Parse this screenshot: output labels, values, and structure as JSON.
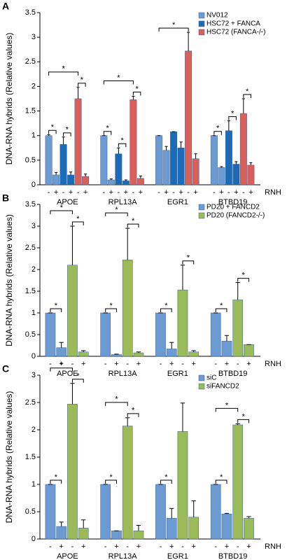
{
  "chart_data": [
    {
      "type": "bar",
      "panel_label": "A",
      "ylabel": "DNA-RNA hybrids (Relative values)",
      "categories": [
        "APOE",
        "RPL13A",
        "EGR1",
        "BTBD19"
      ],
      "treatments": [
        "-",
        "+"
      ],
      "treatment_label": "RNH",
      "ylim": [
        0,
        3.5
      ],
      "yticks": [
        0,
        0.5,
        1,
        1.5,
        2,
        2.5,
        3,
        3.5
      ],
      "legend": "upper right",
      "series": [
        {
          "name": "NV012",
          "color": "#6b9bd2",
          "values": [
            [
              1.0,
              0.2
            ],
            [
              1.0,
              0.1
            ],
            [
              1.0,
              0.7
            ],
            [
              1.0,
              0.35
            ]
          ],
          "errors": [
            [
              0.02,
              0.05
            ],
            [
              0,
              0.02
            ],
            [
              0,
              0.08
            ],
            [
              0,
              0.02
            ]
          ]
        },
        {
          "name": "HSC72 + FANCA",
          "color": "#1a6cb8",
          "values": [
            [
              0.82,
              0.2
            ],
            [
              0.63,
              0.08
            ],
            [
              1.08,
              0.75
            ],
            [
              1.1,
              0.42
            ]
          ],
          "errors": [
            [
              0.15,
              0.06
            ],
            [
              0.12,
              0.02
            ],
            [
              0,
              0.12
            ],
            [
              0.2,
              0.05
            ]
          ]
        },
        {
          "name": "HSC72 (FANCA-/-)",
          "color": "#d95f5b",
          "values": [
            [
              1.75,
              0.17
            ],
            [
              1.73,
              0.13
            ],
            [
              2.72,
              0.53
            ],
            [
              1.45,
              0.4
            ]
          ],
          "errors": [
            [
              0.23,
              0.05
            ],
            [
              0.07,
              0.05
            ],
            [
              0.38,
              0.1
            ],
            [
              0.3,
              0.05
            ]
          ]
        }
      ],
      "significance": [
        {
          "category": 0,
          "bars": [
            0,
            1
          ],
          "label": "*"
        },
        {
          "category": 0,
          "bars": [
            2,
            3
          ],
          "label": "*"
        },
        {
          "category": 0,
          "bars": [
            4,
            5
          ],
          "label": "*"
        },
        {
          "category": 0,
          "bars": [
            0,
            4
          ],
          "label": "*"
        },
        {
          "category": 1,
          "bars": [
            0,
            1
          ],
          "label": "*"
        },
        {
          "category": 1,
          "bars": [
            2,
            3
          ],
          "label": "*"
        },
        {
          "category": 1,
          "bars": [
            4,
            5
          ],
          "label": "*"
        },
        {
          "category": 1,
          "bars": [
            0,
            4
          ],
          "label": "*"
        },
        {
          "category": 2,
          "bars": [
            0,
            4
          ],
          "label": "*"
        },
        {
          "category": 3,
          "bars": [
            0,
            1
          ],
          "label": "*"
        },
        {
          "category": 3,
          "bars": [
            2,
            3
          ],
          "label": "*"
        },
        {
          "category": 3,
          "bars": [
            4,
            5
          ],
          "label": "*"
        }
      ]
    },
    {
      "type": "bar",
      "panel_label": "B",
      "ylabel": "DNA-RNA hybrids (Relative values)",
      "categories": [
        "APOE",
        "RPL13A",
        "EGR1",
        "BTBD19"
      ],
      "treatments": [
        "-",
        "+"
      ],
      "treatment_label": "RNH",
      "ylim": [
        0,
        3.5
      ],
      "yticks": [
        0,
        0.5,
        1,
        1.5,
        2,
        2.5,
        3,
        3.5
      ],
      "legend": "upper right",
      "series": [
        {
          "name": "PD20 + FANCD2",
          "color": "#6b9bd2",
          "values": [
            [
              1.0,
              0.2
            ],
            [
              1.0,
              0.04
            ],
            [
              1.0,
              0.17
            ],
            [
              1.0,
              0.35
            ]
          ],
          "errors": [
            [
              0,
              0.12
            ],
            [
              0,
              0.01
            ],
            [
              0,
              0.15
            ],
            [
              0,
              0.13
            ]
          ]
        },
        {
          "name": "PD20 (FANCD2-/-)",
          "color": "#9bbb59",
          "values": [
            [
              2.1,
              0.1
            ],
            [
              2.22,
              0.08
            ],
            [
              1.53,
              0.1
            ],
            [
              1.3,
              0.27
            ]
          ],
          "errors": [
            [
              0.9,
              0.03
            ],
            [
              0.73,
              0.02
            ],
            [
              0.57,
              0.03
            ],
            [
              0.4,
              0
            ]
          ]
        }
      ],
      "significance": [
        {
          "category": 0,
          "bars": [
            0,
            1
          ],
          "label": "*"
        },
        {
          "category": 0,
          "bars": [
            2,
            3
          ],
          "label": "*"
        },
        {
          "category": 0,
          "bars": [
            0,
            2
          ],
          "label": "*"
        },
        {
          "category": 1,
          "bars": [
            0,
            1
          ],
          "label": "*"
        },
        {
          "category": 1,
          "bars": [
            2,
            3
          ],
          "label": "*"
        },
        {
          "category": 1,
          "bars": [
            0,
            2
          ],
          "label": "*"
        },
        {
          "category": 2,
          "bars": [
            0,
            1
          ],
          "label": "*"
        },
        {
          "category": 2,
          "bars": [
            2,
            3
          ],
          "label": "*"
        },
        {
          "category": 3,
          "bars": [
            0,
            1
          ],
          "label": "*"
        },
        {
          "category": 3,
          "bars": [
            2,
            3
          ],
          "label": "*"
        }
      ]
    },
    {
      "type": "bar",
      "panel_label": "C",
      "ylabel": "DNA-RNA hybrids (Relative values)",
      "categories": [
        "APOE",
        "RPL13A",
        "EGR1",
        "BTBD19"
      ],
      "treatments": [
        "-",
        "+"
      ],
      "treatment_label": "RNH",
      "ylim": [
        0,
        3
      ],
      "yticks": [
        0,
        0.5,
        1,
        1.5,
        2,
        2.5,
        3
      ],
      "legend": "upper right",
      "series": [
        {
          "name": "siC",
          "color": "#6b9bd2",
          "values": [
            [
              1.0,
              0.23
            ],
            [
              1.0,
              0.15
            ],
            [
              1.0,
              0.38
            ],
            [
              1.0,
              0.46
            ]
          ],
          "errors": [
            [
              0,
              0.08
            ],
            [
              0,
              0
            ],
            [
              0,
              0.18
            ],
            [
              0,
              0.01
            ]
          ]
        },
        {
          "name": "siFANCD2",
          "color": "#9bbb59",
          "values": [
            [
              2.47,
              0.2
            ],
            [
              2.07,
              0.15
            ],
            [
              1.97,
              0.4
            ],
            [
              2.09,
              0.38
            ]
          ],
          "errors": [
            [
              0.38,
              0.15
            ],
            [
              0.15,
              0.1
            ],
            [
              0.52,
              0.3
            ],
            [
              0.02,
              0.03
            ]
          ]
        }
      ],
      "significance": [
        {
          "category": 0,
          "bars": [
            0,
            1
          ],
          "label": "*"
        },
        {
          "category": 0,
          "bars": [
            2,
            3
          ],
          "label": "*"
        },
        {
          "category": 0,
          "bars": [
            0,
            2
          ],
          "label": "*"
        },
        {
          "category": 1,
          "bars": [
            0,
            1
          ],
          "label": "*"
        },
        {
          "category": 1,
          "bars": [
            2,
            3
          ],
          "label": "*"
        },
        {
          "category": 1,
          "bars": [
            0,
            2
          ],
          "label": "*"
        },
        {
          "category": 2,
          "bars": [
            0,
            1
          ],
          "label": "*"
        },
        {
          "category": 3,
          "bars": [
            0,
            1
          ],
          "label": "*"
        },
        {
          "category": 3,
          "bars": [
            2,
            3
          ],
          "label": "*"
        },
        {
          "category": 3,
          "bars": [
            0,
            2
          ],
          "label": "*"
        }
      ]
    }
  ]
}
